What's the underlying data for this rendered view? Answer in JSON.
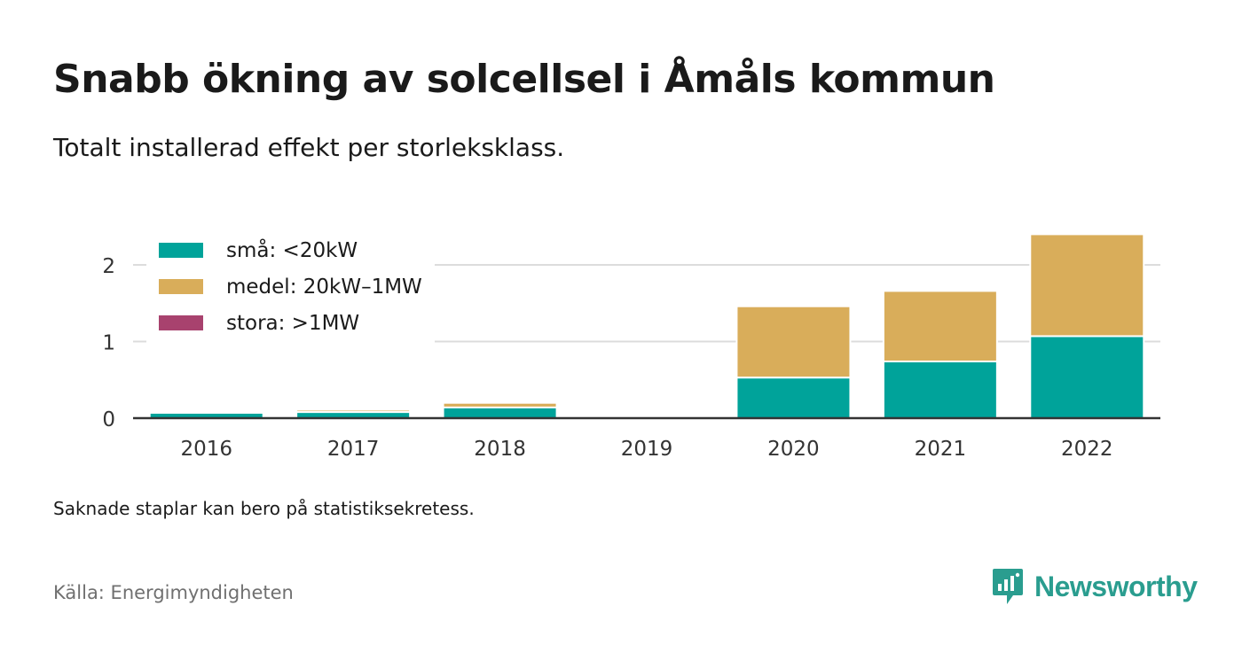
{
  "title": "Snabb ökning av solcellsel i Åmåls kommun",
  "subtitle": "Totalt installerad effekt per storleksklass.",
  "note": "Saknade staplar kan bero på statistiksekretess.",
  "source": "Källa: Energimyndigheten",
  "brand": {
    "name": "Newsworthy",
    "icon": "newsworthy-logo-icon"
  },
  "colors": {
    "sma": "#00a39a",
    "medel": "#d9ad5a",
    "stora": "#a8426e",
    "grid": "#dcdcdc",
    "axis": "#333333"
  },
  "chart_data": {
    "type": "bar",
    "stacked": true,
    "categories": [
      "2016",
      "2017",
      "2018",
      "2019",
      "2020",
      "2021",
      "2022"
    ],
    "series": [
      {
        "name": "små: <20kW",
        "color": "#00a39a",
        "values": [
          0.07,
          0.08,
          0.14,
          null,
          0.53,
          0.74,
          1.07
        ]
      },
      {
        "name": "medel: 20kW–1MW",
        "color": "#d9ad5a",
        "values": [
          0.02,
          0.03,
          0.06,
          null,
          0.93,
          0.92,
          1.33
        ]
      },
      {
        "name": "stora: >1MW",
        "color": "#a8426e",
        "values": [
          0,
          0,
          0,
          null,
          0,
          0,
          0
        ]
      }
    ],
    "yticks": [
      "0",
      "1",
      "2"
    ],
    "ylim": [
      0,
      2.5
    ],
    "grid": true,
    "legend_position": "top-left"
  }
}
